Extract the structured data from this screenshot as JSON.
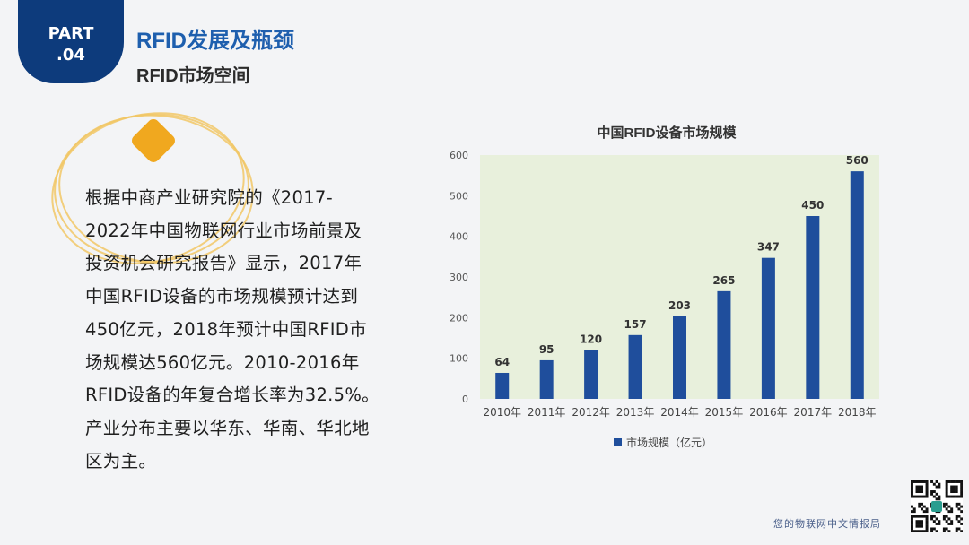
{
  "header": {
    "badge_line1": "PART",
    "badge_line2": ".04",
    "title": "RFID发展及瓶颈",
    "subtitle": "RFID市场空间"
  },
  "body": {
    "lines": [
      "根据中商产业研究院的《2017-",
      "2022年中国物联网行业市场前景及",
      "投资机会研究报告》显示，2017年",
      "中国RFID设备的市场规模预计达到",
      "450亿元，2018年预计中国RFID市",
      "场规模达560亿元。2010-2016年",
      "RFID设备的年复合增长率为32.5%。",
      "产业分布主要以华东、华南、华北地",
      "区为主。"
    ]
  },
  "footer": {
    "text": "您的物联网中文情报局"
  },
  "colors": {
    "badge": "#0d3b7c",
    "title": "#1e5fae",
    "bar": "#1f4e9c",
    "plot_bg": "#e8f0dc",
    "accent_orange": "#f0a81f",
    "ring_gold": "#f1c766"
  },
  "chart_data": {
    "type": "bar",
    "title": "中国RFID设备市场规模",
    "categories": [
      "2010年",
      "2011年",
      "2012年",
      "2013年",
      "2014年",
      "2015年",
      "2016年",
      "2017年",
      "2018年"
    ],
    "series": [
      {
        "name": "市场规模（亿元）",
        "values": [
          64,
          95,
          120,
          157,
          203,
          265,
          347,
          450,
          560
        ]
      }
    ],
    "ylim": [
      0,
      600
    ],
    "yticks": [
      0,
      100,
      200,
      300,
      400,
      500,
      600
    ],
    "xlabel": "",
    "ylabel": "",
    "grid": false,
    "legend": "bottom"
  }
}
